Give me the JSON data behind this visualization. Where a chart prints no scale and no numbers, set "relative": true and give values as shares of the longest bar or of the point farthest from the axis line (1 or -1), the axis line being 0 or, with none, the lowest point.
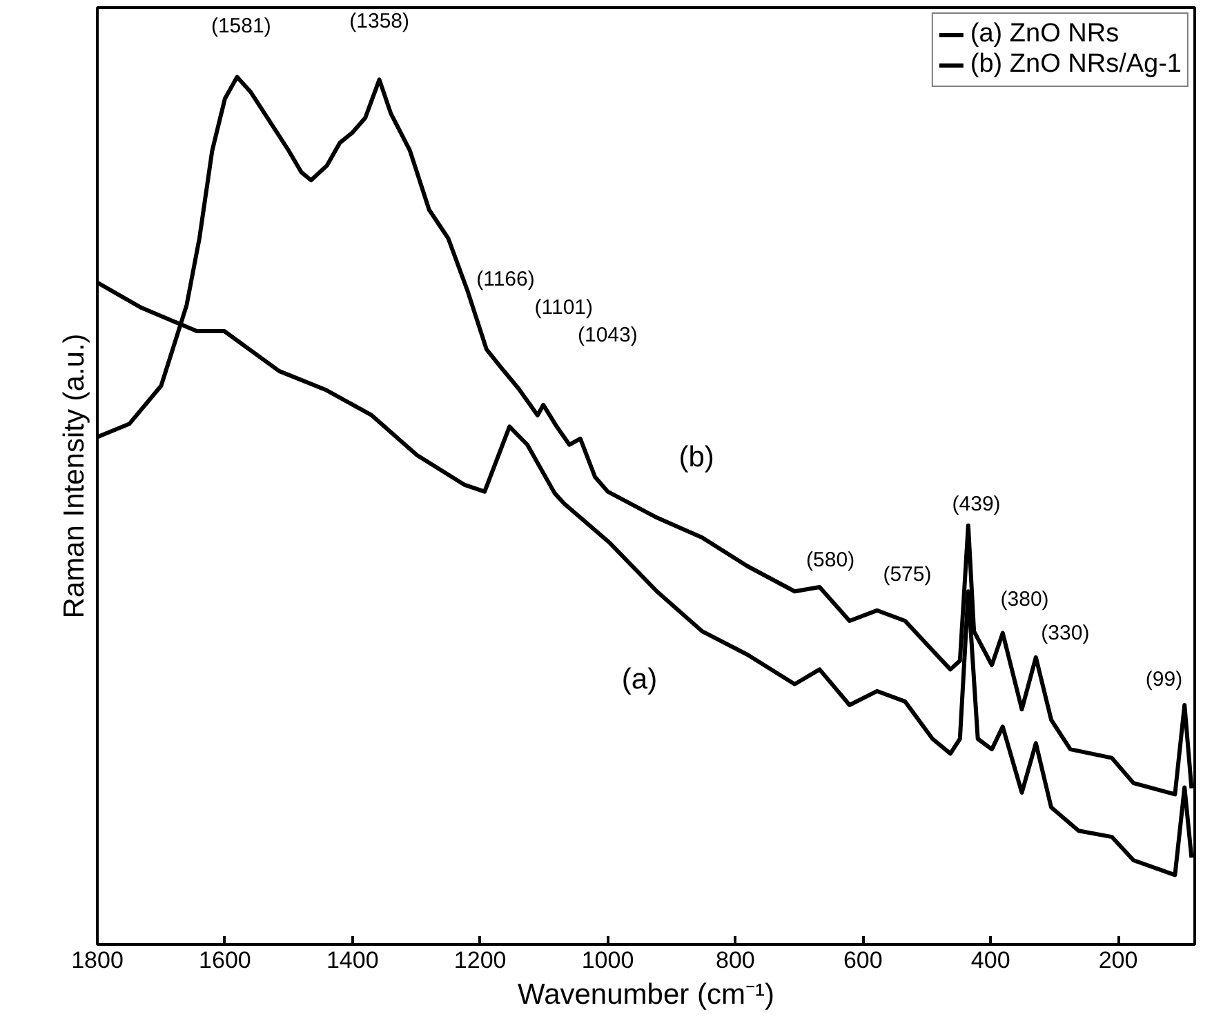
{
  "chart_data": {
    "type": "line",
    "relative": true,
    "xlabel": "Wavenumber (cm⁻¹)",
    "ylabel": "Raman Intensity (a.u.)",
    "xlim": [
      1800,
      80
    ],
    "xticks": [
      1800,
      1600,
      1400,
      1200,
      1000,
      800,
      600,
      400,
      200
    ],
    "grid": false,
    "legend": "top right",
    "marker": "none",
    "line_style": "solid",
    "series": [
      {
        "name": "(a) ZnO NRs",
        "color": "#000000",
        "x": [
          1800,
          1731,
          1644,
          1601,
          1515,
          1441,
          1370,
          1299,
          1225,
          1193,
          1154,
          1126,
          1083,
          1068,
          997,
          923,
          852,
          781,
          707,
          668,
          621,
          578,
          534,
          491,
          463,
          448,
          435,
          420,
          398,
          381,
          351,
          329,
          305,
          262,
          210,
          176,
          111,
          96,
          85
        ],
        "values": [
          0.763,
          0.734,
          0.707,
          0.707,
          0.661,
          0.639,
          0.61,
          0.564,
          0.53,
          0.522,
          0.597,
          0.576,
          0.52,
          0.508,
          0.463,
          0.407,
          0.361,
          0.334,
          0.3,
          0.317,
          0.276,
          0.292,
          0.28,
          0.237,
          0.22,
          0.237,
          0.407,
          0.237,
          0.225,
          0.251,
          0.175,
          0.232,
          0.158,
          0.131,
          0.124,
          0.097,
          0.08,
          0.181,
          0.1
        ]
      },
      {
        "name": "(b) ZnO NRs/Ag-1",
        "color": "#000000",
        "x": [
          1800,
          1750,
          1700,
          1660,
          1640,
          1620,
          1600,
          1581,
          1560,
          1530,
          1500,
          1480,
          1465,
          1440,
          1420,
          1400,
          1380,
          1358,
          1340,
          1310,
          1280,
          1250,
          1220,
          1190,
          1166,
          1140,
          1110,
          1101,
          1080,
          1060,
          1043,
          1020,
          1000,
          923,
          852,
          781,
          707,
          668,
          621,
          578,
          534,
          491,
          463,
          448,
          435,
          426,
          398,
          381,
          351,
          329,
          305,
          275,
          210,
          176,
          111,
          96,
          85
        ],
        "values": [
          0.585,
          0.6,
          0.644,
          0.737,
          0.814,
          0.915,
          0.975,
          1.0,
          0.983,
          0.949,
          0.915,
          0.89,
          0.881,
          0.898,
          0.924,
          0.936,
          0.953,
          0.997,
          0.958,
          0.915,
          0.847,
          0.814,
          0.754,
          0.686,
          0.664,
          0.641,
          0.61,
          0.622,
          0.597,
          0.576,
          0.583,
          0.539,
          0.522,
          0.492,
          0.469,
          0.436,
          0.407,
          0.412,
          0.373,
          0.385,
          0.373,
          0.339,
          0.317,
          0.327,
          0.483,
          0.361,
          0.322,
          0.359,
          0.271,
          0.331,
          0.259,
          0.225,
          0.215,
          0.186,
          0.173,
          0.276,
          0.18
        ]
      }
    ],
    "annotations": [
      "(1581)",
      "(1358)",
      "(1166)",
      "(1101)",
      "(1043)",
      "(b)",
      "(580)",
      "(575)",
      "(439)",
      "(380)",
      "(330)",
      "(99)",
      "(a)"
    ]
  }
}
